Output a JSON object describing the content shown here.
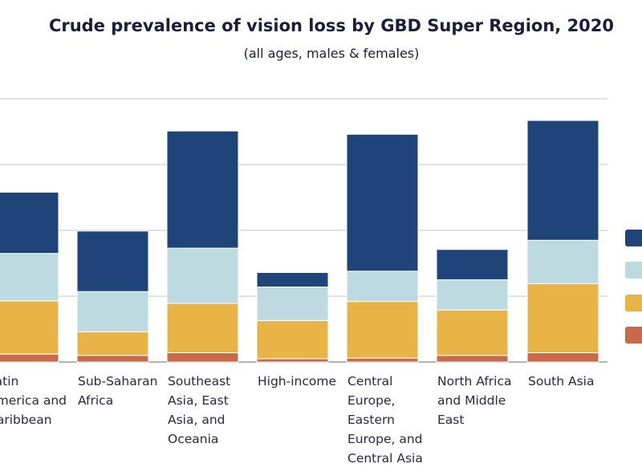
{
  "chart_data": {
    "type": "bar",
    "stacked": true,
    "title": "Crude prevalence of vision loss by GBD Super Region, 2020",
    "subtitle": "(all ages, males & females)",
    "xlabel": "",
    "ylabel": "",
    "ylim": [
      0,
      40
    ],
    "grid": true,
    "legend_position": "right",
    "categories": [
      [
        "Latin",
        "America and",
        "Caribbean"
      ],
      [
        "Sub-Saharan",
        "Africa"
      ],
      [
        "Southeast",
        "Asia, East",
        "Asia, and",
        "Oceania"
      ],
      [
        "High-income"
      ],
      [
        "Central",
        "Europe,",
        "Eastern",
        "Europe, and",
        "Central Asia"
      ],
      [
        "North Africa",
        "and Middle",
        "East"
      ],
      [
        "South Asia"
      ]
    ],
    "series": [
      {
        "color": "#c8694a",
        "values": [
          1.2,
          1.0,
          1.4,
          0.5,
          0.6,
          1.0,
          1.4
        ]
      },
      {
        "color": "#e9b447",
        "values": [
          8.1,
          3.6,
          7.5,
          5.8,
          8.6,
          6.9,
          10.5
        ]
      },
      {
        "color": "#bcdadf",
        "values": [
          7.2,
          6.1,
          8.4,
          5.1,
          4.6,
          4.6,
          6.6
        ]
      },
      {
        "color": "#1f4479",
        "values": [
          9.3,
          9.2,
          17.8,
          2.2,
          20.8,
          4.6,
          18.2
        ]
      }
    ]
  }
}
